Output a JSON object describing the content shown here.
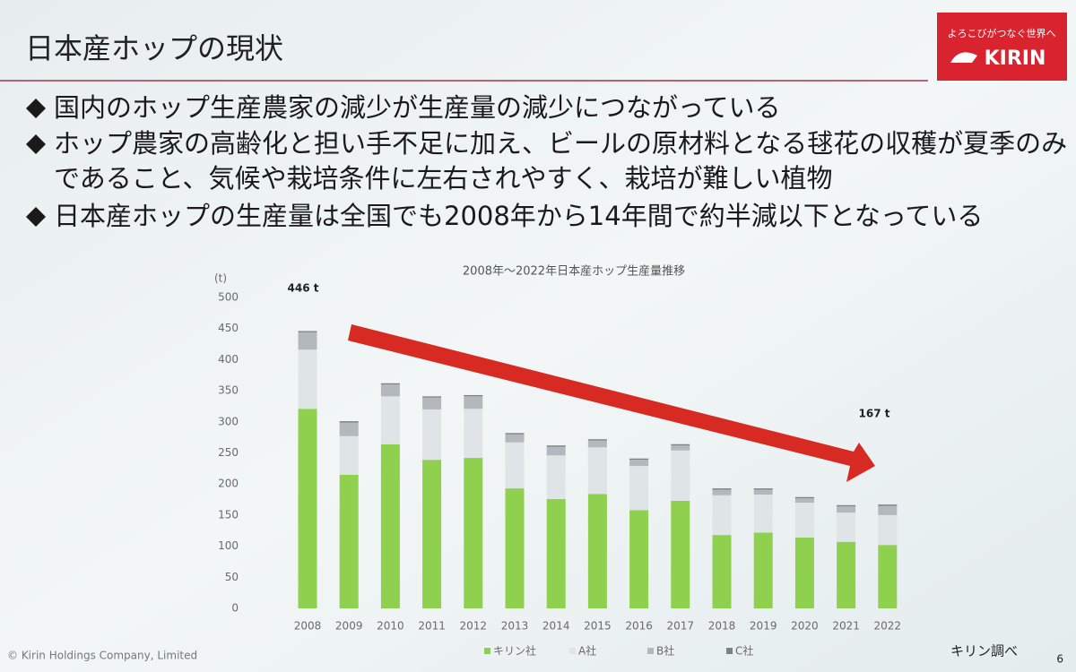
{
  "slide": {
    "title": "日本産ホップの現状",
    "bullets": [
      [
        "国内のホップ生産農家の減少が生産量の減少につながっている"
      ],
      [
        "ホップ農家の高齢化と担い手不足に加え、ビールの原材料となる毬花の収穫が夏季のみ",
        "であること、気候や栽培条件に左右されやすく、栽培が難しい植物"
      ],
      [
        "日本産ホップの生産量は全国でも2008年から14年間で約半減以下となっている"
      ]
    ],
    "logo": {
      "tagline": "よろこびがつなぐ世界へ",
      "brand": "KIRIN"
    },
    "footer": "© Kirin Holdings Company, Limited",
    "source": "キリン調べ",
    "page": 6
  },
  "chart_data": {
    "type": "stacked_bar",
    "title": "2008年～2022年日本産ホップ生産量推移",
    "y_label": "(t)",
    "categories": [
      "2008",
      "2009",
      "2010",
      "2011",
      "2012",
      "2013",
      "2014",
      "2015",
      "2016",
      "2017",
      "2018",
      "2019",
      "2020",
      "2021",
      "2022"
    ],
    "series": [
      {
        "name": "キリン社",
        "color": "#8fd14f",
        "values": [
          321,
          215,
          264,
          239,
          242,
          193,
          176,
          184,
          158,
          173,
          118,
          122,
          114,
          107,
          102
        ]
      },
      {
        "name": "A社",
        "color": "#dfe5e7",
        "values": [
          95,
          62,
          77,
          81,
          79,
          74,
          70,
          75,
          71,
          81,
          64,
          61,
          56,
          47,
          48
        ]
      },
      {
        "name": "B社",
        "color": "#b3b8bc",
        "values": [
          28,
          22,
          19,
          19,
          20,
          13,
          14,
          11,
          10,
          8,
          9,
          8,
          7,
          10,
          15
        ]
      },
      {
        "name": "C社",
        "color": "#7d8185",
        "values": [
          2,
          2,
          2,
          2,
          2,
          2,
          2,
          2,
          2,
          2,
          2,
          2,
          2,
          2,
          2
        ]
      }
    ],
    "ylim": [
      0,
      500
    ],
    "yticks": [
      0,
      50,
      100,
      150,
      200,
      250,
      300,
      350,
      400,
      450,
      500
    ],
    "annotations": [
      "446 t",
      "167 t"
    ]
  }
}
